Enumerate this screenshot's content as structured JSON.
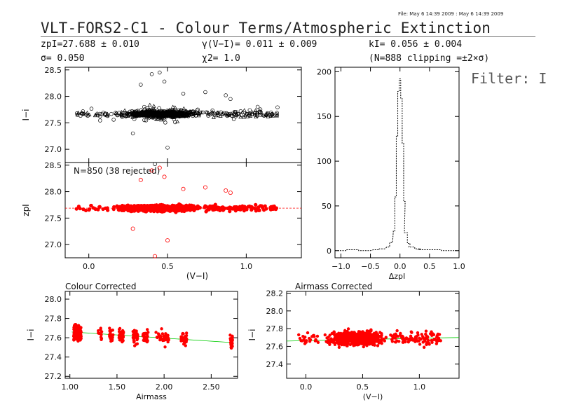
{
  "header": {
    "file_stamp": "File: May  6 14:39 2009 : May  6 14:39 2009",
    "title": "VLT-FORS2-C1 - Colour Terms/Atmospheric Extinction",
    "zp_line": "zpI=27.688 ± 0.010",
    "sigma_line": "σ= 0.050",
    "gamma_line": "γ(V−I)= 0.011 ± 0.009",
    "chi2_line": "χ2= 1.0",
    "k_line": "kI= 0.056 ± 0.004",
    "clip_line": "(N=888 clipping =±2×σ)",
    "filter_label": "Filter: I"
  },
  "colors": {
    "axis": "#000000",
    "fit_points": "#ff0000",
    "fit_line": "#ff0000",
    "trend_line": "#00cc00",
    "raw_points": "#000000"
  },
  "chart_data": [
    {
      "id": "raw",
      "type": "scatter",
      "xlim": [
        -0.15,
        1.35
      ],
      "ylim": [
        26.75,
        28.55
      ],
      "yticks": [
        "27.0",
        "27.5",
        "28.0",
        "28.5"
      ],
      "xticks": [],
      "ylabel": "I−i",
      "xlabel": "",
      "centre": 27.67,
      "spread": 0.04,
      "n": 850,
      "outliers": [
        [
          0.45,
          28.45
        ],
        [
          0.4,
          28.42
        ],
        [
          0.48,
          28.28
        ],
        [
          0.33,
          28.22
        ],
        [
          0.6,
          28.05
        ],
        [
          0.74,
          28.08
        ],
        [
          0.87,
          28.02
        ],
        [
          0.28,
          27.3
        ],
        [
          0.5,
          27.03
        ],
        [
          0.42,
          26.72
        ],
        [
          0.9,
          27.95
        ]
      ]
    },
    {
      "id": "fit",
      "type": "scatter",
      "xlim": [
        -0.15,
        1.35
      ],
      "ylim": [
        26.75,
        28.55
      ],
      "yticks": [
        "27.0",
        "27.5",
        "28.0",
        "28.5"
      ],
      "xticks": [
        "0.0",
        "0.5",
        "1.0"
      ],
      "ylabel": "zpI",
      "xlabel": "(V−I)",
      "annotation": "N=850 (38 rejected)",
      "centre": 27.688,
      "spread": 0.04,
      "n": 850,
      "rejected": 38,
      "outliers": [
        [
          0.45,
          28.45
        ],
        [
          0.4,
          28.4
        ],
        [
          0.48,
          28.28
        ],
        [
          0.33,
          28.22
        ],
        [
          0.6,
          28.05
        ],
        [
          0.74,
          28.08
        ],
        [
          0.87,
          28.02
        ],
        [
          0.28,
          27.3
        ],
        [
          0.5,
          27.08
        ],
        [
          0.42,
          26.78
        ],
        [
          0.9,
          27.98
        ]
      ]
    },
    {
      "id": "hist",
      "type": "histogram",
      "xlim": [
        -1.1,
        1.0
      ],
      "ylim": [
        -8,
        205
      ],
      "xticks": [
        "−1.0",
        "−0.5",
        "0.0",
        "0.5",
        "1.0"
      ],
      "yticks": [
        "0",
        "50",
        "100",
        "150",
        "200"
      ],
      "xlabel": "ΔzpI",
      "bin_centres": [
        -1.0,
        -0.8,
        -0.6,
        -0.4,
        -0.3,
        -0.2,
        -0.15,
        -0.1,
        -0.075,
        -0.05,
        -0.025,
        0.0,
        0.025,
        0.05,
        0.075,
        0.1,
        0.15,
        0.2,
        0.3,
        0.4,
        0.6,
        0.8
      ],
      "counts": [
        0,
        1,
        0,
        1,
        2,
        4,
        9,
        22,
        60,
        128,
        178,
        192,
        170,
        120,
        55,
        20,
        8,
        4,
        2,
        1,
        1,
        0
      ]
    },
    {
      "id": "colour",
      "type": "scatter",
      "title": "Colour Corrected",
      "xlim": [
        0.95,
        2.78
      ],
      "ylim": [
        27.18,
        28.08
      ],
      "xticks": [
        "1.00",
        "1.50",
        "2.00",
        "2.50"
      ],
      "yticks": [
        "27.2",
        "27.4",
        "27.6",
        "27.8",
        "28.0"
      ],
      "xlabel": "Airmass",
      "ylabel": "I−i",
      "trend": [
        [
          1.02,
          27.66
        ],
        [
          2.72,
          27.55
        ]
      ],
      "airmass_groups": [
        [
          1.04,
          1.12,
          220
        ],
        [
          1.3,
          1.34,
          10
        ],
        [
          1.42,
          1.46,
          25
        ],
        [
          1.52,
          1.57,
          40
        ],
        [
          1.67,
          1.72,
          30
        ],
        [
          1.77,
          1.83,
          25
        ],
        [
          1.91,
          2.05,
          30
        ],
        [
          2.18,
          2.24,
          35
        ],
        [
          2.7,
          2.73,
          25
        ]
      ]
    },
    {
      "id": "airmass",
      "type": "scatter",
      "title": "Airmass Corrected",
      "xlim": [
        -0.17,
        1.35
      ],
      "ylim": [
        27.24,
        28.22
      ],
      "xticks": [
        "0.0",
        "0.5",
        "1.0"
      ],
      "yticks": [
        "27.4",
        "27.6",
        "27.8",
        "28.0",
        "28.2"
      ],
      "xlabel": "(V−I)",
      "ylabel": "I−i",
      "trend": [
        [
          -0.17,
          27.66
        ],
        [
          1.35,
          27.7
        ]
      ],
      "centre": 27.69,
      "spread": 0.04,
      "n": 850
    }
  ]
}
